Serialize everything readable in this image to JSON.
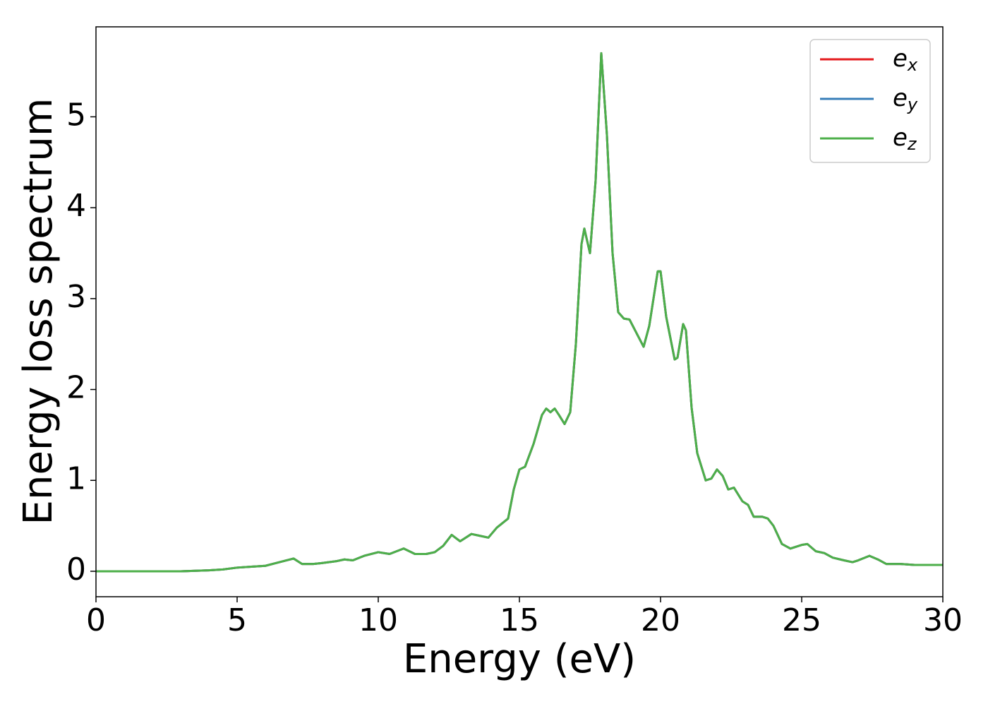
{
  "chart_data": {
    "type": "line",
    "xlabel": "Energy (eV)",
    "ylabel": "Energy loss spectrum",
    "x": [
      0,
      1,
      2,
      3,
      4,
      4.5,
      5,
      5.5,
      6,
      6.5,
      7,
      7.3,
      7.7,
      8,
      8.5,
      8.8,
      9.1,
      9.5,
      10,
      10.4,
      10.9,
      11.3,
      11.7,
      12,
      12.3,
      12.6,
      12.9,
      13.3,
      13.6,
      13.9,
      14.2,
      14.6,
      14.8,
      15,
      15.2,
      15.5,
      15.8,
      15.95,
      16.1,
      16.25,
      16.4,
      16.6,
      16.8,
      17,
      17.2,
      17.3,
      17.5,
      17.7,
      17.9,
      18.1,
      18.3,
      18.5,
      18.7,
      18.9,
      19.1,
      19.4,
      19.6,
      19.9,
      20,
      20.2,
      20.5,
      20.6,
      20.8,
      20.9,
      21.1,
      21.3,
      21.6,
      21.8,
      22,
      22.2,
      22.4,
      22.6,
      22.9,
      23.1,
      23.3,
      23.6,
      23.8,
      24,
      24.3,
      24.6,
      25,
      25.2,
      25.5,
      25.8,
      26.1,
      26.5,
      26.8,
      27,
      27.4,
      27.7,
      28,
      28.5,
      29,
      29.5,
      30
    ],
    "series": [
      {
        "name": "ex",
        "color": "#e41a1c",
        "values": [
          0,
          0,
          0,
          0,
          0.01,
          0.02,
          0.04,
          0.05,
          0.06,
          0.1,
          0.14,
          0.08,
          0.08,
          0.09,
          0.11,
          0.13,
          0.12,
          0.17,
          0.21,
          0.19,
          0.25,
          0.19,
          0.19,
          0.21,
          0.28,
          0.4,
          0.33,
          0.41,
          0.39,
          0.37,
          0.48,
          0.58,
          0.9,
          1.12,
          1.15,
          1.4,
          1.72,
          1.79,
          1.75,
          1.79,
          1.72,
          1.62,
          1.75,
          2.5,
          3.6,
          3.77,
          3.5,
          4.3,
          5.7,
          4.8,
          3.5,
          2.85,
          2.78,
          2.77,
          2.65,
          2.47,
          2.7,
          3.3,
          3.3,
          2.8,
          2.33,
          2.35,
          2.72,
          2.65,
          1.8,
          1.3,
          1.0,
          1.02,
          1.12,
          1.05,
          0.9,
          0.92,
          0.77,
          0.73,
          0.6,
          0.6,
          0.58,
          0.5,
          0.3,
          0.25,
          0.29,
          0.3,
          0.22,
          0.2,
          0.15,
          0.12,
          0.1,
          0.12,
          0.17,
          0.13,
          0.08,
          0.08,
          0.07,
          0.07,
          0.07
        ]
      },
      {
        "name": "ey",
        "color": "#377eb8",
        "values": [
          0,
          0,
          0,
          0,
          0.01,
          0.02,
          0.04,
          0.05,
          0.06,
          0.1,
          0.14,
          0.08,
          0.08,
          0.09,
          0.11,
          0.13,
          0.12,
          0.17,
          0.21,
          0.19,
          0.25,
          0.19,
          0.19,
          0.21,
          0.28,
          0.4,
          0.33,
          0.41,
          0.39,
          0.37,
          0.48,
          0.58,
          0.9,
          1.12,
          1.15,
          1.4,
          1.72,
          1.79,
          1.75,
          1.79,
          1.72,
          1.62,
          1.75,
          2.5,
          3.6,
          3.77,
          3.5,
          4.3,
          5.7,
          4.8,
          3.5,
          2.85,
          2.78,
          2.77,
          2.65,
          2.47,
          2.7,
          3.3,
          3.3,
          2.8,
          2.33,
          2.35,
          2.72,
          2.65,
          1.8,
          1.3,
          1.0,
          1.02,
          1.12,
          1.05,
          0.9,
          0.92,
          0.77,
          0.73,
          0.6,
          0.6,
          0.58,
          0.5,
          0.3,
          0.25,
          0.29,
          0.3,
          0.22,
          0.2,
          0.15,
          0.12,
          0.1,
          0.12,
          0.17,
          0.13,
          0.08,
          0.08,
          0.07,
          0.07,
          0.07
        ]
      },
      {
        "name": "ez",
        "color": "#4daf4a",
        "values": [
          0,
          0,
          0,
          0,
          0.01,
          0.02,
          0.04,
          0.05,
          0.06,
          0.1,
          0.14,
          0.08,
          0.08,
          0.09,
          0.11,
          0.13,
          0.12,
          0.17,
          0.21,
          0.19,
          0.25,
          0.19,
          0.19,
          0.21,
          0.28,
          0.4,
          0.33,
          0.41,
          0.39,
          0.37,
          0.48,
          0.58,
          0.9,
          1.12,
          1.15,
          1.4,
          1.72,
          1.79,
          1.75,
          1.79,
          1.72,
          1.62,
          1.75,
          2.5,
          3.6,
          3.77,
          3.5,
          4.3,
          5.7,
          4.8,
          3.5,
          2.85,
          2.78,
          2.77,
          2.65,
          2.47,
          2.7,
          3.3,
          3.3,
          2.8,
          2.33,
          2.35,
          2.72,
          2.65,
          1.8,
          1.3,
          1.0,
          1.02,
          1.12,
          1.05,
          0.9,
          0.92,
          0.77,
          0.73,
          0.6,
          0.6,
          0.58,
          0.5,
          0.3,
          0.25,
          0.29,
          0.3,
          0.22,
          0.2,
          0.15,
          0.12,
          0.1,
          0.12,
          0.17,
          0.13,
          0.08,
          0.08,
          0.07,
          0.07,
          0.07
        ]
      }
    ],
    "xlim": [
      0,
      30
    ],
    "xticks": [
      0,
      5,
      10,
      15,
      20,
      25,
      30
    ],
    "ylim": [
      -0.28,
      5.99
    ],
    "yticks": [
      0,
      1,
      2,
      3,
      4,
      5
    ],
    "legend": "upper-right",
    "grid": false
  }
}
